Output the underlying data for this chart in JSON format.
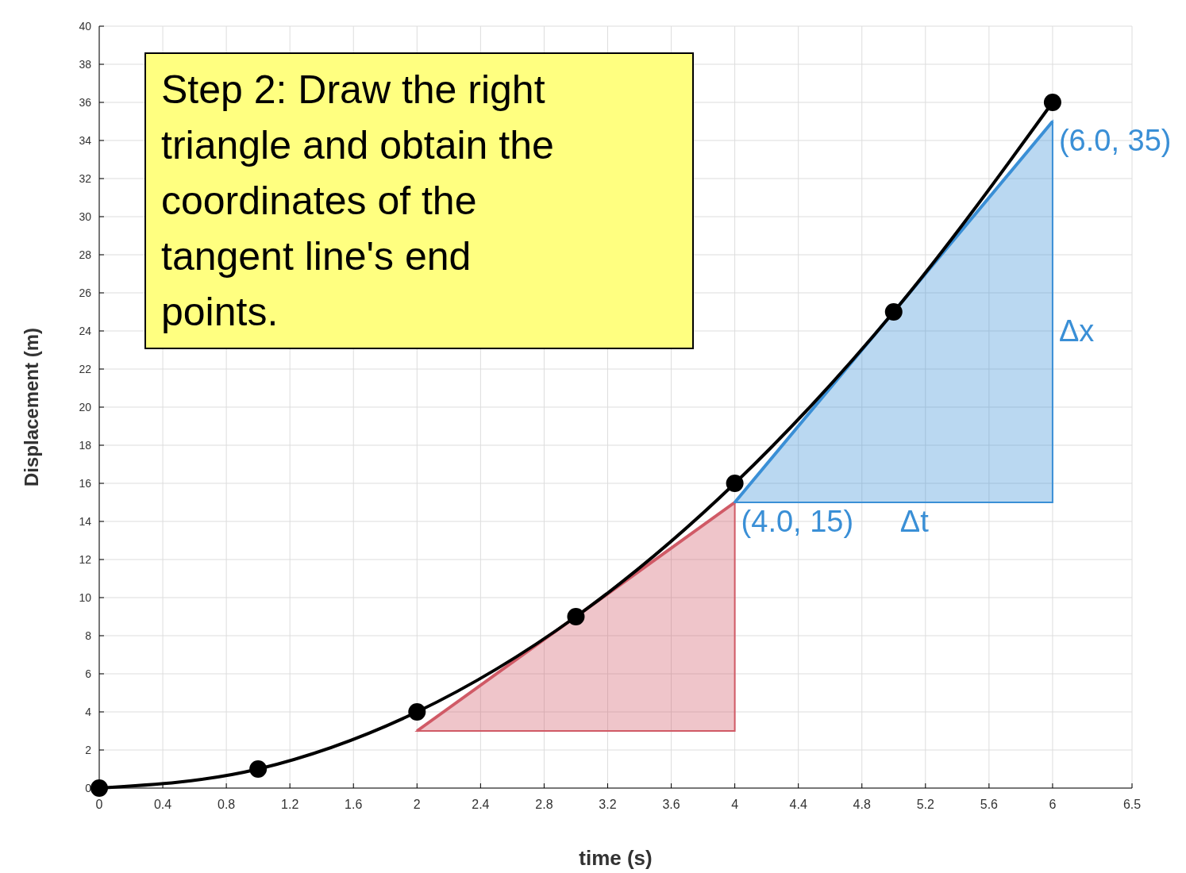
{
  "chart_data": {
    "type": "line",
    "xlabel": "time (s)",
    "ylabel": "Displacement (m)",
    "xlim": [
      0,
      6.5
    ],
    "xticks": [
      0,
      0.4,
      0.8,
      1.2,
      1.6,
      2,
      2.4,
      2.8,
      3.2,
      3.6,
      4,
      4.4,
      4.8,
      5.2,
      5.6,
      6,
      6.5
    ],
    "ylim": [
      0,
      40
    ],
    "yticks": [
      0,
      2,
      4,
      6,
      8,
      10,
      12,
      14,
      16,
      18,
      20,
      22,
      24,
      26,
      28,
      30,
      32,
      34,
      36,
      38,
      40
    ],
    "grid": true,
    "marker": "circle",
    "series": [
      {
        "color": "#d05a66",
        "x": [
          2,
          4
        ],
        "values": [
          3,
          15
        ],
        "lower": [
          3,
          3
        ],
        "upper": [
          3,
          15
        ],
        "marker": "none"
      },
      {
        "color": "#3a8fd6",
        "x": [
          4,
          6
        ],
        "values": [
          15,
          35
        ],
        "lower": [
          15,
          15
        ],
        "upper": [
          15,
          35
        ],
        "marker": "none"
      },
      {
        "color": "#000000",
        "x": [
          0,
          1,
          2,
          3,
          4,
          5,
          6
        ],
        "values": [
          0,
          1,
          4,
          9,
          16,
          25,
          36
        ]
      }
    ],
    "annotations": [
      "Step 2: Draw the right triangle and obtain the coordinates of the tangent line's end points.",
      {
        "text": "(4.0, 15)",
        "x": 4,
        "y": 15
      },
      {
        "text": "(6.0, 35)",
        "x": 6,
        "y": 35
      },
      {
        "text": "Δt",
        "x": 5,
        "y": 15
      },
      {
        "text": "Δx",
        "x": 6,
        "y": 25
      }
    ]
  }
}
